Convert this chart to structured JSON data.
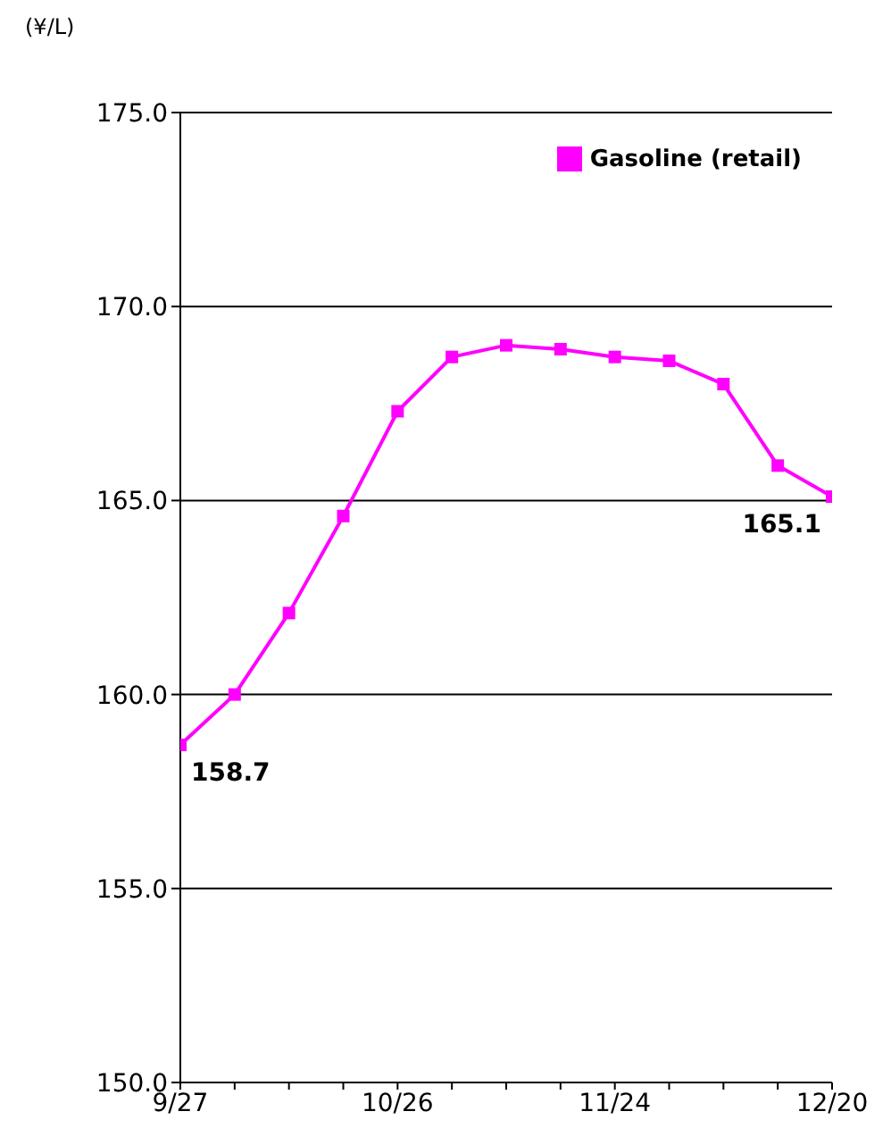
{
  "chart_data": {
    "type": "line",
    "ylabel": "(¥/L)",
    "categories": [
      "9/27",
      null,
      null,
      null,
      "10/26",
      null,
      null,
      null,
      "11/24",
      null,
      null,
      null,
      "12/20"
    ],
    "series": [
      {
        "name": "Gasoline (retail)",
        "color": "#ff00ff",
        "values": [
          158.7,
          160.0,
          162.1,
          164.6,
          167.3,
          168.7,
          169.0,
          168.9,
          168.7,
          168.6,
          168.0,
          165.9,
          165.1
        ],
        "value_labels": [
          "158.7",
          null,
          null,
          null,
          null,
          null,
          null,
          null,
          null,
          null,
          null,
          null,
          "165.1"
        ]
      }
    ],
    "ylim": [
      150,
      175
    ],
    "yticks": [
      {
        "value": 150,
        "label": "150.0"
      },
      {
        "value": 155,
        "label": "155.0"
      },
      {
        "value": 160,
        "label": "160.0"
      },
      {
        "value": 165,
        "label": "165.0"
      },
      {
        "value": 170,
        "label": "170.0"
      },
      {
        "value": 175,
        "label": "175.0"
      }
    ],
    "grid": "y",
    "legend": "top right",
    "marker": "square",
    "line_style": "solid"
  }
}
